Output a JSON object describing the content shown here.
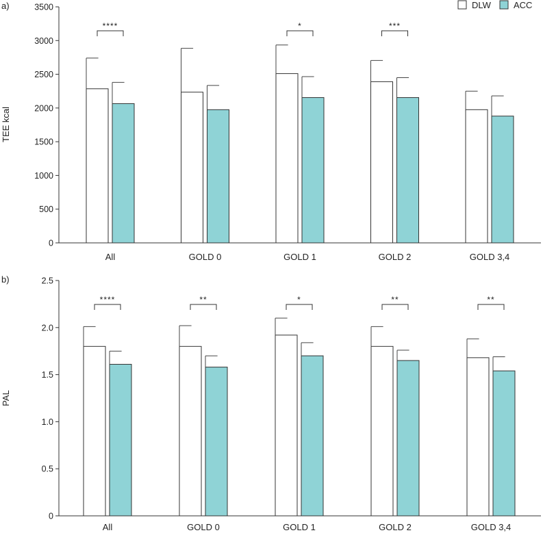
{
  "legend": {
    "items": [
      {
        "name": "DLW",
        "color": "#ffffff"
      },
      {
        "name": "ACC",
        "color": "#8fd3d6"
      }
    ]
  },
  "colors": {
    "dlw": "#ffffff",
    "acc": "#8fd3d6",
    "stroke": "#333333"
  },
  "chart_data": [
    {
      "type": "bar",
      "panel_label": "a)",
      "title": "",
      "xlabel": "",
      "ylabel": "TEE kcal",
      "ylim": [
        0,
        3500
      ],
      "yticks": [
        0,
        500,
        1000,
        1500,
        2000,
        2500,
        3000,
        3500
      ],
      "ytick_labels": [
        "0",
        "500",
        "1000",
        "1500",
        "2000",
        "2500",
        "3000",
        "3500"
      ],
      "categories": [
        "All",
        "GOLD 0",
        "GOLD 1",
        "GOLD 2",
        "GOLD 3,4"
      ],
      "series": [
        {
          "name": "DLW",
          "values": [
            2285,
            2235,
            2510,
            2390,
            1975
          ],
          "errors": [
            455,
            650,
            425,
            315,
            275
          ]
        },
        {
          "name": "ACC",
          "values": [
            2065,
            1975,
            2155,
            2155,
            1880
          ],
          "errors": [
            315,
            360,
            310,
            295,
            300
          ]
        }
      ],
      "significance": [
        "****",
        "",
        "*",
        "***",
        ""
      ]
    },
    {
      "type": "bar",
      "panel_label": "b)",
      "title": "",
      "xlabel": "",
      "ylabel": "PAL",
      "ylim": [
        0,
        2.5
      ],
      "yticks": [
        0,
        0.5,
        1.0,
        1.5,
        2.0,
        2.5
      ],
      "ytick_labels": [
        "0",
        "0.5",
        "1.0",
        "1.5",
        "2.0",
        "2.5"
      ],
      "categories": [
        "All",
        "GOLD 0",
        "GOLD 1",
        "GOLD 2",
        "GOLD 3,4"
      ],
      "series": [
        {
          "name": "DLW",
          "values": [
            1.8,
            1.8,
            1.92,
            1.8,
            1.68
          ],
          "errors": [
            0.21,
            0.22,
            0.18,
            0.21,
            0.2
          ]
        },
        {
          "name": "ACC",
          "values": [
            1.61,
            1.58,
            1.7,
            1.65,
            1.54
          ],
          "errors": [
            0.14,
            0.12,
            0.14,
            0.11,
            0.15
          ]
        }
      ],
      "significance": [
        "****",
        "**",
        "*",
        "**",
        "**"
      ]
    }
  ]
}
